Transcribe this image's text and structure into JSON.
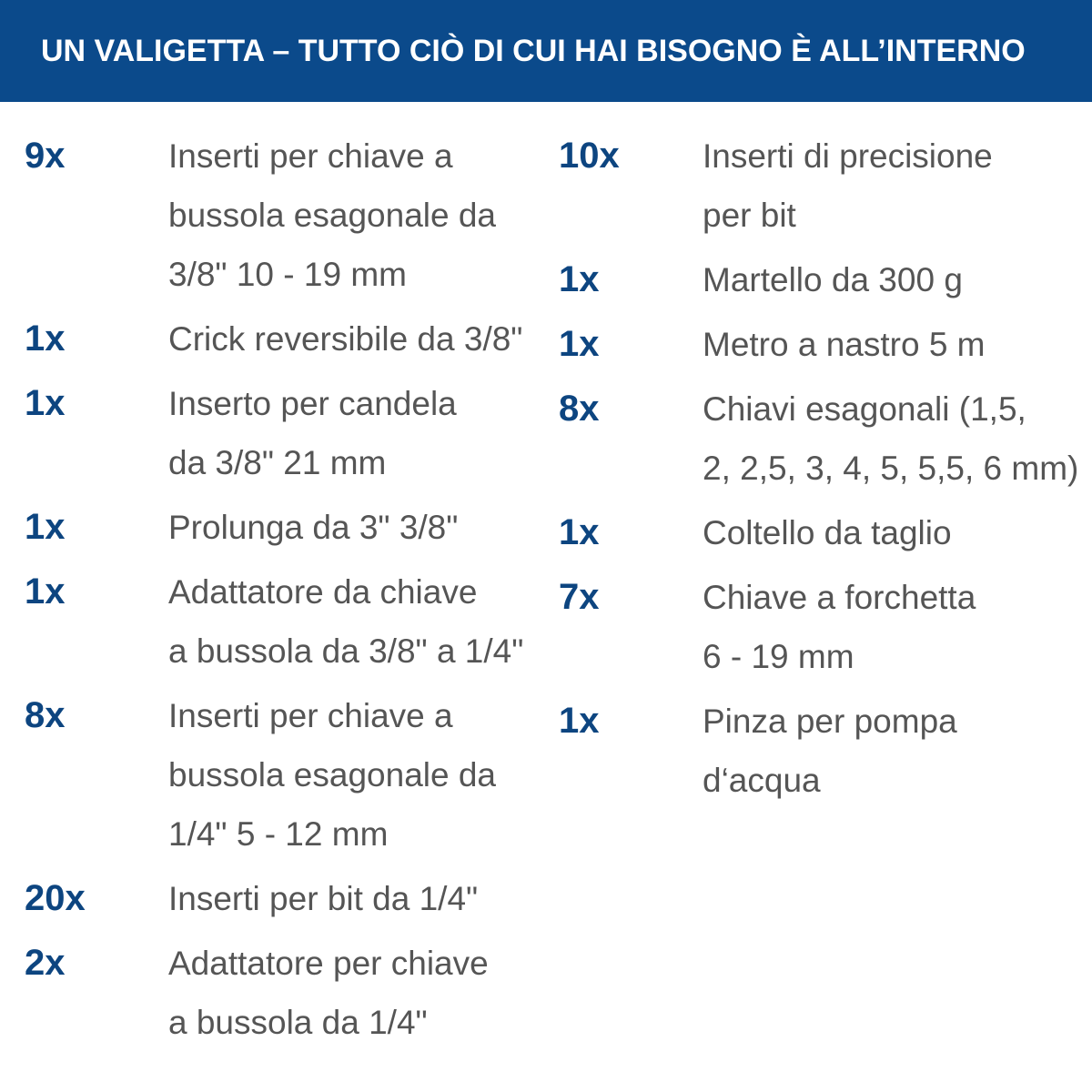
{
  "header": {
    "title": "UN VALIGETTA – TUTTO CIÒ DI CUI HAI BISOGNO È ALL’INTERNO"
  },
  "columns": [
    {
      "items": [
        {
          "qty": "9x",
          "lines": [
            "Inserti per chiave a",
            "bussola esagonale da",
            "3/8\" 10 - 19 mm"
          ]
        },
        {
          "qty": "1x",
          "lines": [
            "Crick reversibile da 3/8\""
          ]
        },
        {
          "qty": "1x",
          "lines": [
            "Inserto per candela",
            "da 3/8\" 21 mm"
          ]
        },
        {
          "qty": "1x",
          "lines": [
            "Prolunga da 3\" 3/8\""
          ]
        },
        {
          "qty": "1x",
          "lines": [
            "Adattatore da chiave",
            "a bussola da 3/8\" a 1/4\""
          ]
        },
        {
          "qty": "8x",
          "lines": [
            "Inserti per chiave a",
            "bussola esagonale da",
            "1/4\" 5 - 12 mm"
          ]
        },
        {
          "qty": "20x",
          "lines": [
            "Inserti per bit da 1/4\""
          ]
        },
        {
          "qty": "2x",
          "lines": [
            "Adattatore per chiave",
            "a bussola da 1/4\""
          ]
        }
      ]
    },
    {
      "items": [
        {
          "qty": "10x",
          "lines": [
            "Inserti di precisione",
            "per bit"
          ]
        },
        {
          "qty": "1x",
          "lines": [
            "Martello da 300 g"
          ]
        },
        {
          "qty": "1x",
          "lines": [
            "Metro a nastro 5 m"
          ]
        },
        {
          "qty": "8x",
          "lines": [
            "Chiavi esagonali (1,5,",
            "2, 2,5, 3, 4, 5, 5,5, 6 mm)"
          ]
        },
        {
          "qty": "1x",
          "lines": [
            "Coltello da taglio"
          ]
        },
        {
          "qty": "7x",
          "lines": [
            "Chiave a forchetta",
            "6 - 19 mm"
          ]
        },
        {
          "qty": "1x",
          "lines": [
            "Pinza per pompa",
            "d‘acqua"
          ]
        }
      ]
    }
  ]
}
